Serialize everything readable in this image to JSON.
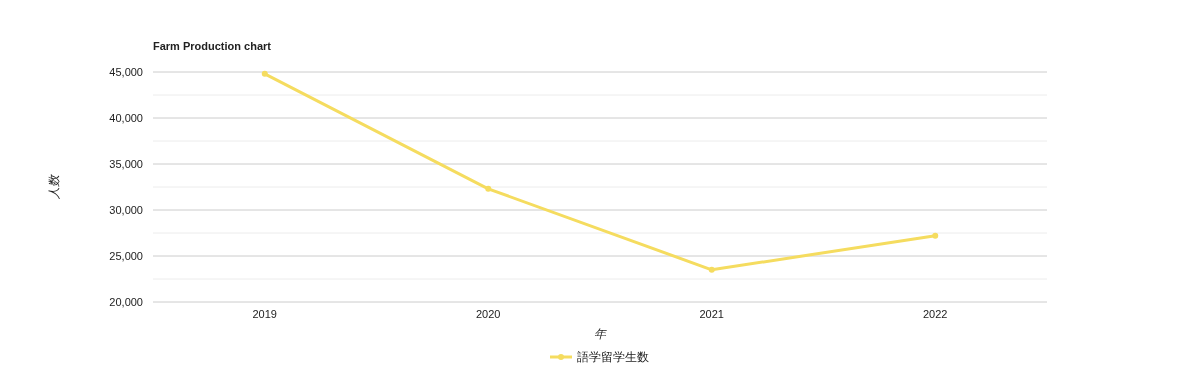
{
  "chart_data": {
    "type": "line",
    "title": "Farm Production chart",
    "xlabel": "年",
    "ylabel": "人数",
    "categories": [
      "2019",
      "2020",
      "2021",
      "2022"
    ],
    "series": [
      {
        "name": "語学留学生数",
        "color": "#f5dc5f",
        "values": [
          44800,
          32300,
          23500,
          27200
        ]
      }
    ],
    "ylim": [
      20000,
      45000
    ],
    "yticks": [
      {
        "value": 20000,
        "label": "20,000"
      },
      {
        "value": 22500,
        "label": null
      },
      {
        "value": 25000,
        "label": "25,000"
      },
      {
        "value": 27500,
        "label": null
      },
      {
        "value": 30000,
        "label": "30,000"
      },
      {
        "value": 32500,
        "label": null
      },
      {
        "value": 35000,
        "label": "35,000"
      },
      {
        "value": 37500,
        "label": null
      },
      {
        "value": 40000,
        "label": "40,000"
      },
      {
        "value": 42500,
        "label": null
      },
      {
        "value": 45000,
        "label": "45,000"
      }
    ],
    "grid": true,
    "legend": "bottom",
    "marker": "circle",
    "line_style": "solid"
  }
}
